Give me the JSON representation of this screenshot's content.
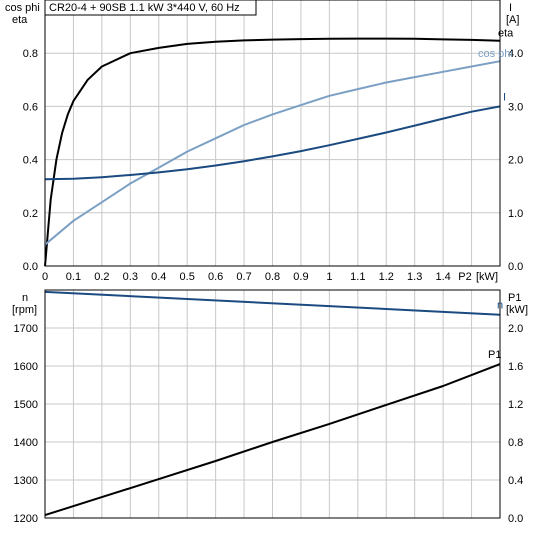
{
  "chart_data": [
    {
      "type": "line",
      "title": "CR20-4 + 90SB   1.1 kW   3*440 V, 60 Hz",
      "xlabel": "P2 [kW]",
      "x_ticks": [
        "0",
        "0.1",
        "0.2",
        "0.3",
        "0.4",
        "0.5",
        "0.6",
        "0.7",
        "0.8",
        "0.9",
        "1",
        "1.1",
        "1.2",
        "1.3",
        "1.4",
        "P2"
      ],
      "x_unit": "[kW]",
      "xlim": [
        0,
        1.6
      ],
      "ylabel_left": [
        "cos phi",
        "eta"
      ],
      "ylim_left": [
        0,
        1.0
      ],
      "y_ticks_left": [
        "0.0",
        "0.2",
        "0.4",
        "0.6",
        "0.8"
      ],
      "ylabel_right": [
        "I",
        "[A]"
      ],
      "ylim_right": [
        0,
        5.0
      ],
      "y_ticks_right": [
        "0.0",
        "1.0",
        "2.0",
        "3.0",
        "4.0"
      ],
      "series": [
        {
          "name": "eta",
          "axis": "left",
          "color": "#000000",
          "x": [
            0.0,
            0.02,
            0.04,
            0.06,
            0.08,
            0.1,
            0.15,
            0.2,
            0.3,
            0.4,
            0.5,
            0.6,
            0.7,
            0.8,
            0.9,
            1.0,
            1.1,
            1.2,
            1.3,
            1.4,
            1.5,
            1.6
          ],
          "y": [
            0.0,
            0.25,
            0.4,
            0.5,
            0.57,
            0.62,
            0.7,
            0.75,
            0.8,
            0.82,
            0.835,
            0.843,
            0.848,
            0.851,
            0.853,
            0.854,
            0.855,
            0.855,
            0.854,
            0.852,
            0.85,
            0.847
          ]
        },
        {
          "name": "cos phi",
          "axis": "left",
          "color": "#7ba0c4",
          "x": [
            0.0,
            0.1,
            0.2,
            0.3,
            0.4,
            0.5,
            0.6,
            0.7,
            0.8,
            0.9,
            1.0,
            1.1,
            1.2,
            1.3,
            1.4,
            1.5,
            1.6
          ],
          "y": [
            0.08,
            0.17,
            0.24,
            0.31,
            0.37,
            0.43,
            0.48,
            0.53,
            0.57,
            0.605,
            0.64,
            0.665,
            0.69,
            0.71,
            0.73,
            0.75,
            0.77
          ]
        },
        {
          "name": "I",
          "axis": "right",
          "color": "#1a4a80",
          "x": [
            0.0,
            0.1,
            0.2,
            0.3,
            0.4,
            0.5,
            0.6,
            0.7,
            0.8,
            0.9,
            1.0,
            1.1,
            1.2,
            1.3,
            1.4,
            1.5,
            1.6
          ],
          "y": [
            1.63,
            1.64,
            1.67,
            1.71,
            1.76,
            1.82,
            1.89,
            1.97,
            2.06,
            2.16,
            2.27,
            2.39,
            2.51,
            2.64,
            2.77,
            2.9,
            3.0
          ]
        }
      ]
    },
    {
      "type": "line",
      "xlim": [
        0,
        1.6
      ],
      "ylabel_left": [
        "n",
        "[rpm]"
      ],
      "ylim_left": [
        1200,
        1800
      ],
      "y_ticks_left": [
        "1200",
        "1300",
        "1400",
        "1500",
        "1600",
        "1700"
      ],
      "ylabel_right": [
        "P1",
        "[kW]"
      ],
      "ylim_right": [
        0.0,
        2.4
      ],
      "y_ticks_right": [
        "0.0",
        "0.4",
        "0.8",
        "1.2",
        "1.6",
        "2.0"
      ],
      "series": [
        {
          "name": "n",
          "axis": "left",
          "color": "#1a4a80",
          "x": [
            0.0,
            1.6
          ],
          "y": [
            1795,
            1735
          ]
        },
        {
          "name": "P1",
          "axis": "right",
          "color": "#000000",
          "x": [
            0.0,
            0.2,
            0.4,
            0.6,
            0.8,
            1.0,
            1.2,
            1.4,
            1.6
          ],
          "y": [
            0.03,
            0.22,
            0.41,
            0.6,
            0.8,
            0.99,
            1.19,
            1.39,
            1.62
          ]
        }
      ]
    }
  ]
}
